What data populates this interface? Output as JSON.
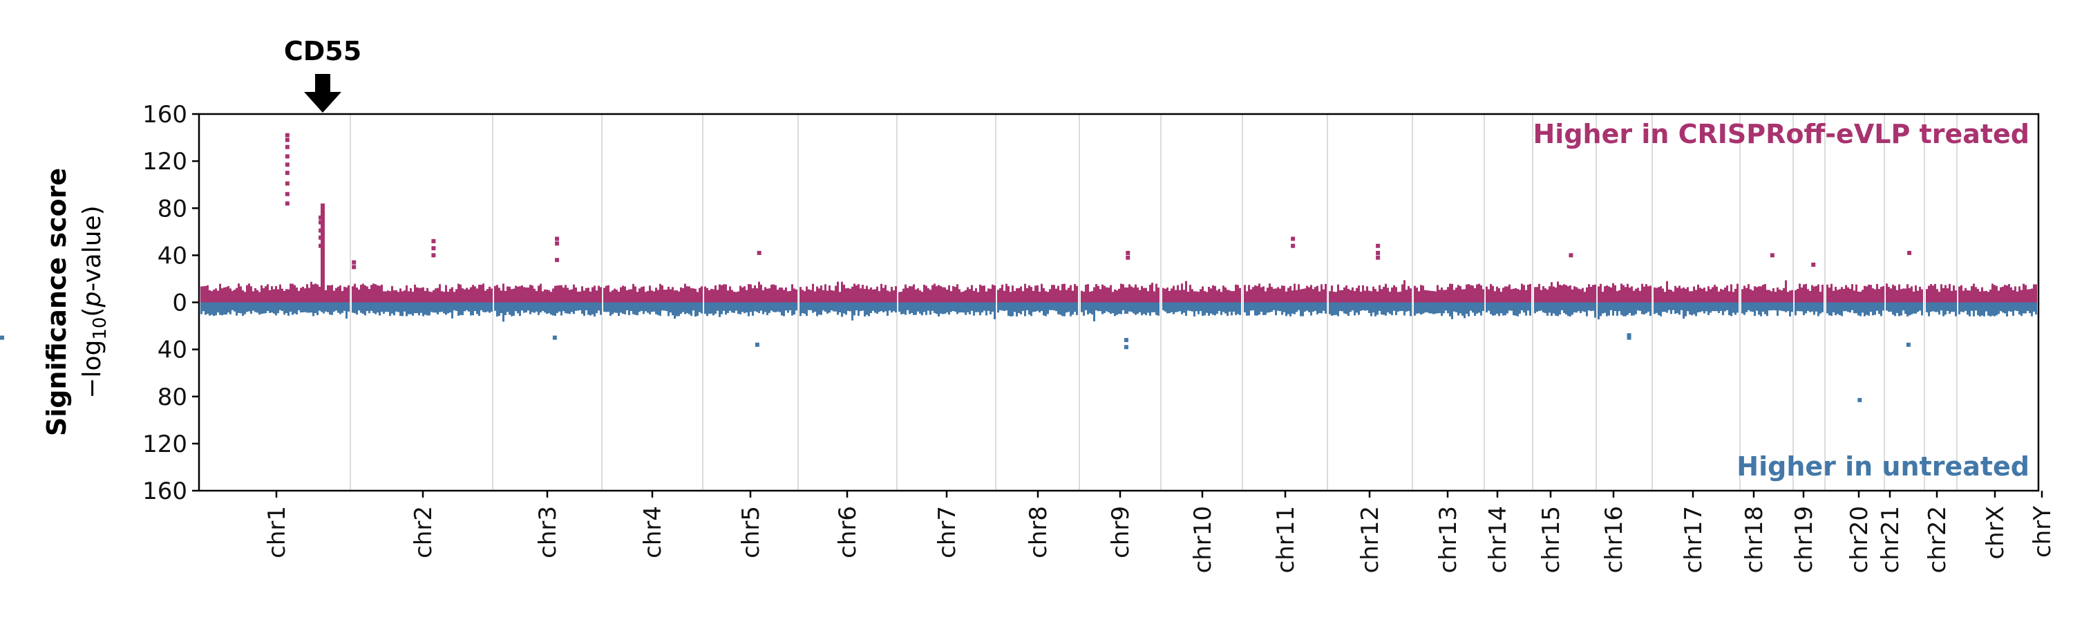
{
  "chart_data": {
    "type": "scatter",
    "subtype": "mirrored manhattan plot",
    "ylabel": "Significance score",
    "ylabel_sub": "−log10(p-value)",
    "ylabel_sub_parts": {
      "prefix": "−log",
      "sub": "10",
      "open": "(",
      "italic": "p",
      "rest": "-value)"
    },
    "yticks": [
      "160",
      "120",
      "80",
      "40",
      "0",
      "40",
      "80",
      "120",
      "160"
    ],
    "ylim": [
      -160,
      160
    ],
    "annotation_up": "Higher in CRISPRoff-eVLP treated",
    "annotation_down": "Higher in untreated",
    "highlight_gene": "CD55",
    "highlight_chromosome": "chr1",
    "colors": {
      "up": "#a8336f",
      "down": "#4378a8",
      "separator": "#d3d3d3",
      "axis": "#000000"
    },
    "chromosomes": [
      {
        "name": "chr1",
        "typical_up": 16,
        "typical_down": 12
      },
      {
        "name": "chr2",
        "typical_up": 16,
        "typical_down": 12
      },
      {
        "name": "chr3",
        "typical_up": 16,
        "typical_down": 12
      },
      {
        "name": "chr4",
        "typical_up": 16,
        "typical_down": 12
      },
      {
        "name": "chr5",
        "typical_up": 16,
        "typical_down": 12
      },
      {
        "name": "chr6",
        "typical_up": 16,
        "typical_down": 12
      },
      {
        "name": "chr7",
        "typical_up": 16,
        "typical_down": 12
      },
      {
        "name": "chr8",
        "typical_up": 16,
        "typical_down": 12
      },
      {
        "name": "chr9",
        "typical_up": 16,
        "typical_down": 12
      },
      {
        "name": "chr10",
        "typical_up": 16,
        "typical_down": 12
      },
      {
        "name": "chr11",
        "typical_up": 16,
        "typical_down": 12
      },
      {
        "name": "chr12",
        "typical_up": 16,
        "typical_down": 12
      },
      {
        "name": "chr13",
        "typical_up": 16,
        "typical_down": 12
      },
      {
        "name": "chr14",
        "typical_up": 16,
        "typical_down": 12
      },
      {
        "name": "chr15",
        "typical_up": 16,
        "typical_down": 12
      },
      {
        "name": "chr16",
        "typical_up": 16,
        "typical_down": 12
      },
      {
        "name": "chr17",
        "typical_up": 16,
        "typical_down": 12
      },
      {
        "name": "chr18",
        "typical_up": 16,
        "typical_down": 12
      },
      {
        "name": "chr19",
        "typical_up": 16,
        "typical_down": 12
      },
      {
        "name": "chr20",
        "typical_up": 16,
        "typical_down": 12
      },
      {
        "name": "chr21",
        "typical_up": 16,
        "typical_down": 12
      },
      {
        "name": "chr22",
        "typical_up": 16,
        "typical_down": 12
      },
      {
        "name": "chrX",
        "typical_up": 16,
        "typical_down": 12
      },
      {
        "name": "chrY",
        "typical_up": 16,
        "typical_down": 12
      }
    ],
    "notable_up": [
      {
        "chr": "chr1",
        "values": [
          84,
          92,
          101,
          110,
          117,
          124,
          132,
          138,
          142
        ]
      },
      {
        "chr": "chr1",
        "values": [
          48,
          55,
          61,
          68,
          72
        ]
      },
      {
        "chr": "chr1",
        "values": [
          34,
          30
        ]
      },
      {
        "chr": "chr2",
        "values": [
          52,
          46,
          40
        ]
      },
      {
        "chr": "chr3",
        "values": [
          54,
          50,
          36
        ]
      },
      {
        "chr": "chr5",
        "values": [
          42
        ]
      },
      {
        "chr": "chr9",
        "values": [
          42,
          38
        ]
      },
      {
        "chr": "chr11",
        "values": [
          54,
          48
        ]
      },
      {
        "chr": "chr12",
        "values": [
          48,
          42,
          38
        ]
      },
      {
        "chr": "chr15",
        "values": [
          40
        ]
      },
      {
        "chr": "chr18",
        "values": [
          40
        ]
      },
      {
        "chr": "chr19",
        "values": [
          32
        ]
      },
      {
        "chr": "chr21",
        "values": [
          42
        ]
      }
    ],
    "notable_down": [
      {
        "chr": "chr3",
        "values": [
          30
        ]
      },
      {
        "chr": "chr5",
        "values": [
          36
        ]
      },
      {
        "chr": "chr9",
        "values": [
          38,
          32
        ]
      },
      {
        "chr": "chr16",
        "values": [
          30,
          28
        ]
      },
      {
        "chr": "chr20",
        "values": [
          83
        ]
      },
      {
        "chr": "chr21",
        "values": [
          36
        ]
      },
      {
        "chr": "chrY",
        "values": [
          30
        ]
      }
    ]
  }
}
